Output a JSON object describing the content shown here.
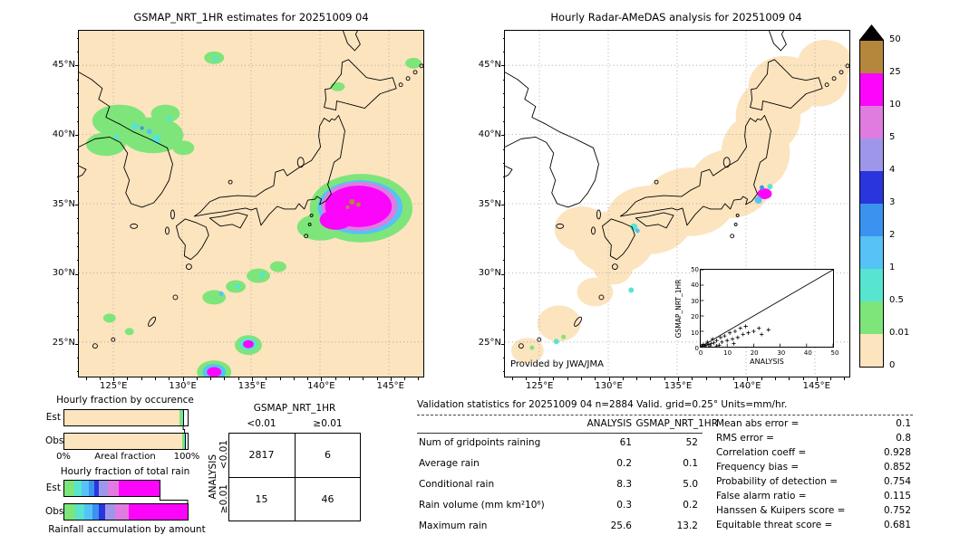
{
  "palette": {
    "peach": "#fce4bf",
    "green": "#7ee57a",
    "cyan": "#57e5cf",
    "skyblue": "#56c2f6",
    "medblue": "#3b93ef",
    "blue": "#2a35de",
    "periwinkle": "#9e97e9",
    "orchid": "#e07ce0",
    "magenta": "#fb06fb",
    "brown": "#b4873c",
    "black": "#000000",
    "white": "#ffffff"
  },
  "chart_data": [
    {
      "id": "map_est",
      "type": "heatmap",
      "title": "GSMAP_NRT_1HR estimates for 20251009 04",
      "lon_ticks": [
        "125°E",
        "130°E",
        "135°E",
        "140°E",
        "145°E"
      ],
      "lat_ticks": [
        "45°N",
        "40°N",
        "35°N",
        "30°N",
        "25°N"
      ],
      "units": "mm/hr"
    },
    {
      "id": "map_obs",
      "type": "heatmap",
      "title": "Hourly Radar-AMeDAS analysis for 20251009 04",
      "lon_ticks": [
        "125°E",
        "130°E",
        "135°E",
        "140°E",
        "145°E"
      ],
      "lat_ticks": [
        "45°N",
        "40°N",
        "35°N",
        "30°N",
        "25°N"
      ],
      "credit": "Provided by JWA/JMA",
      "units": "mm/hr"
    },
    {
      "id": "colorscale",
      "type": "legend",
      "tick_labels": [
        "50",
        "25",
        "10",
        "5",
        "4",
        "3",
        "2",
        "1",
        "0.5",
        "0.01",
        "0"
      ],
      "colorscale_bounds": [
        0,
        0.01,
        0.5,
        1,
        2,
        3,
        4,
        5,
        10,
        25,
        50
      ],
      "segment_colors": [
        "brown",
        "magenta",
        "orchid",
        "periwinkle",
        "blue",
        "medblue",
        "skyblue",
        "cyan",
        "green",
        "peach"
      ],
      "overflow_color": "black"
    },
    {
      "id": "inset_scatter",
      "type": "scatter",
      "xlabel": "ANALYSIS",
      "ylabel": "GSMAP_NRT_1HR",
      "xlim": [
        0,
        50
      ],
      "ylim": [
        0,
        50
      ],
      "xticks": [
        0,
        10,
        20,
        30,
        40,
        50
      ],
      "yticks": [
        0,
        10,
        20,
        30,
        40,
        50
      ],
      "identity_line": true,
      "points": [
        [
          0.5,
          0.5
        ],
        [
          1,
          1.5
        ],
        [
          1.5,
          0.5
        ],
        [
          2,
          1
        ],
        [
          2.5,
          3
        ],
        [
          3,
          1.5
        ],
        [
          3.5,
          0.5
        ],
        [
          4,
          2
        ],
        [
          4.5,
          5
        ],
        [
          5,
          2.5
        ],
        [
          6,
          4
        ],
        [
          6,
          0.5
        ],
        [
          7,
          1
        ],
        [
          7.5,
          6
        ],
        [
          8,
          3
        ],
        [
          9,
          7
        ],
        [
          10,
          4
        ],
        [
          11,
          9
        ],
        [
          12,
          5
        ],
        [
          12.5,
          2
        ],
        [
          13,
          10
        ],
        [
          14,
          6
        ],
        [
          15,
          12
        ],
        [
          16,
          8
        ],
        [
          17,
          13.2
        ],
        [
          18,
          9
        ],
        [
          20,
          10
        ],
        [
          22,
          12
        ],
        [
          23,
          8
        ],
        [
          25.6,
          11
        ]
      ]
    },
    {
      "id": "occurrence",
      "type": "bar",
      "title": "Hourly fraction by occurence",
      "xlabel": "Areal fraction",
      "x0_label": "0%",
      "x1_label": "100%",
      "rows": [
        {
          "label": "Est",
          "fill_end": 96.4,
          "box_end": 100,
          "segments": [
            [
              "peach",
              93.6
            ],
            [
              "green",
              1.9
            ],
            [
              "cyan",
              0.9
            ]
          ]
        },
        {
          "label": "Obs",
          "fill_end": 97.5,
          "box_end": 100,
          "segments": [
            [
              "peach",
              95.4
            ],
            [
              "green",
              1.5
            ],
            [
              "cyan",
              0.6
            ]
          ]
        }
      ]
    },
    {
      "id": "total_rain",
      "type": "bar",
      "title": "Hourly fraction of total rain",
      "caption": "Rainfall accumulation by amount",
      "rows": [
        {
          "label": "Est",
          "fill_end": 77.5,
          "box_end": 77.5,
          "segments": [
            [
              "green",
              8
            ],
            [
              "cyan",
              6
            ],
            [
              "skyblue",
              6
            ],
            [
              "medblue",
              4
            ],
            [
              "blue",
              4
            ],
            [
              "periwinkle",
              7
            ],
            [
              "orchid",
              9
            ],
            [
              "magenta",
              33.5
            ]
          ]
        },
        {
          "label": "Obs",
          "fill_end": 100,
          "box_end": 100,
          "segments": [
            [
              "green",
              9
            ],
            [
              "cyan",
              7
            ],
            [
              "skyblue",
              7
            ],
            [
              "medblue",
              5
            ],
            [
              "blue",
              5
            ],
            [
              "periwinkle",
              8
            ],
            [
              "orchid",
              11
            ],
            [
              "magenta",
              48
            ]
          ]
        }
      ]
    },
    {
      "id": "contingency",
      "type": "table",
      "title": "GSMAP_NRT_1HR",
      "row_axis": "ANALYSIS",
      "col_labels": [
        "<0.01",
        "≥0.01"
      ],
      "row_labels": [
        "<0.01",
        "≥0.01"
      ],
      "values": [
        [
          "2817",
          "6"
        ],
        [
          "15",
          "46"
        ]
      ]
    },
    {
      "id": "stats",
      "type": "table",
      "header": "Validation statistics for 20251009 04  n=2884 Valid. grid=0.25° Units=mm/hr.",
      "col_headers": [
        "ANALYSIS",
        "GSMAP_NRT_1HR"
      ],
      "rows": [
        {
          "label": "Num of gridpoints raining",
          "analysis": "61",
          "gsmap": "52"
        },
        {
          "label": "Average rain",
          "analysis": "0.2",
          "gsmap": "0.1"
        },
        {
          "label": "Conditional rain",
          "analysis": "8.3",
          "gsmap": "5.0"
        },
        {
          "label": "Rain volume (mm km²10⁶)",
          "analysis": "0.3",
          "gsmap": "0.2"
        },
        {
          "label": "Maximum rain",
          "analysis": "25.6",
          "gsmap": "13.2"
        }
      ],
      "scores": [
        {
          "label": "Mean abs error =",
          "value": "0.1"
        },
        {
          "label": "RMS error =",
          "value": "0.8"
        },
        {
          "label": "Correlation coeff =",
          "value": "0.928"
        },
        {
          "label": "Frequency bias =",
          "value": "0.852"
        },
        {
          "label": "Probability of detection =",
          "value": "0.754"
        },
        {
          "label": "False alarm ratio =",
          "value": "0.115"
        },
        {
          "label": "Hanssen & Kuipers score =",
          "value": "0.752"
        },
        {
          "label": "Equitable threat score =",
          "value": "0.681"
        }
      ]
    }
  ]
}
